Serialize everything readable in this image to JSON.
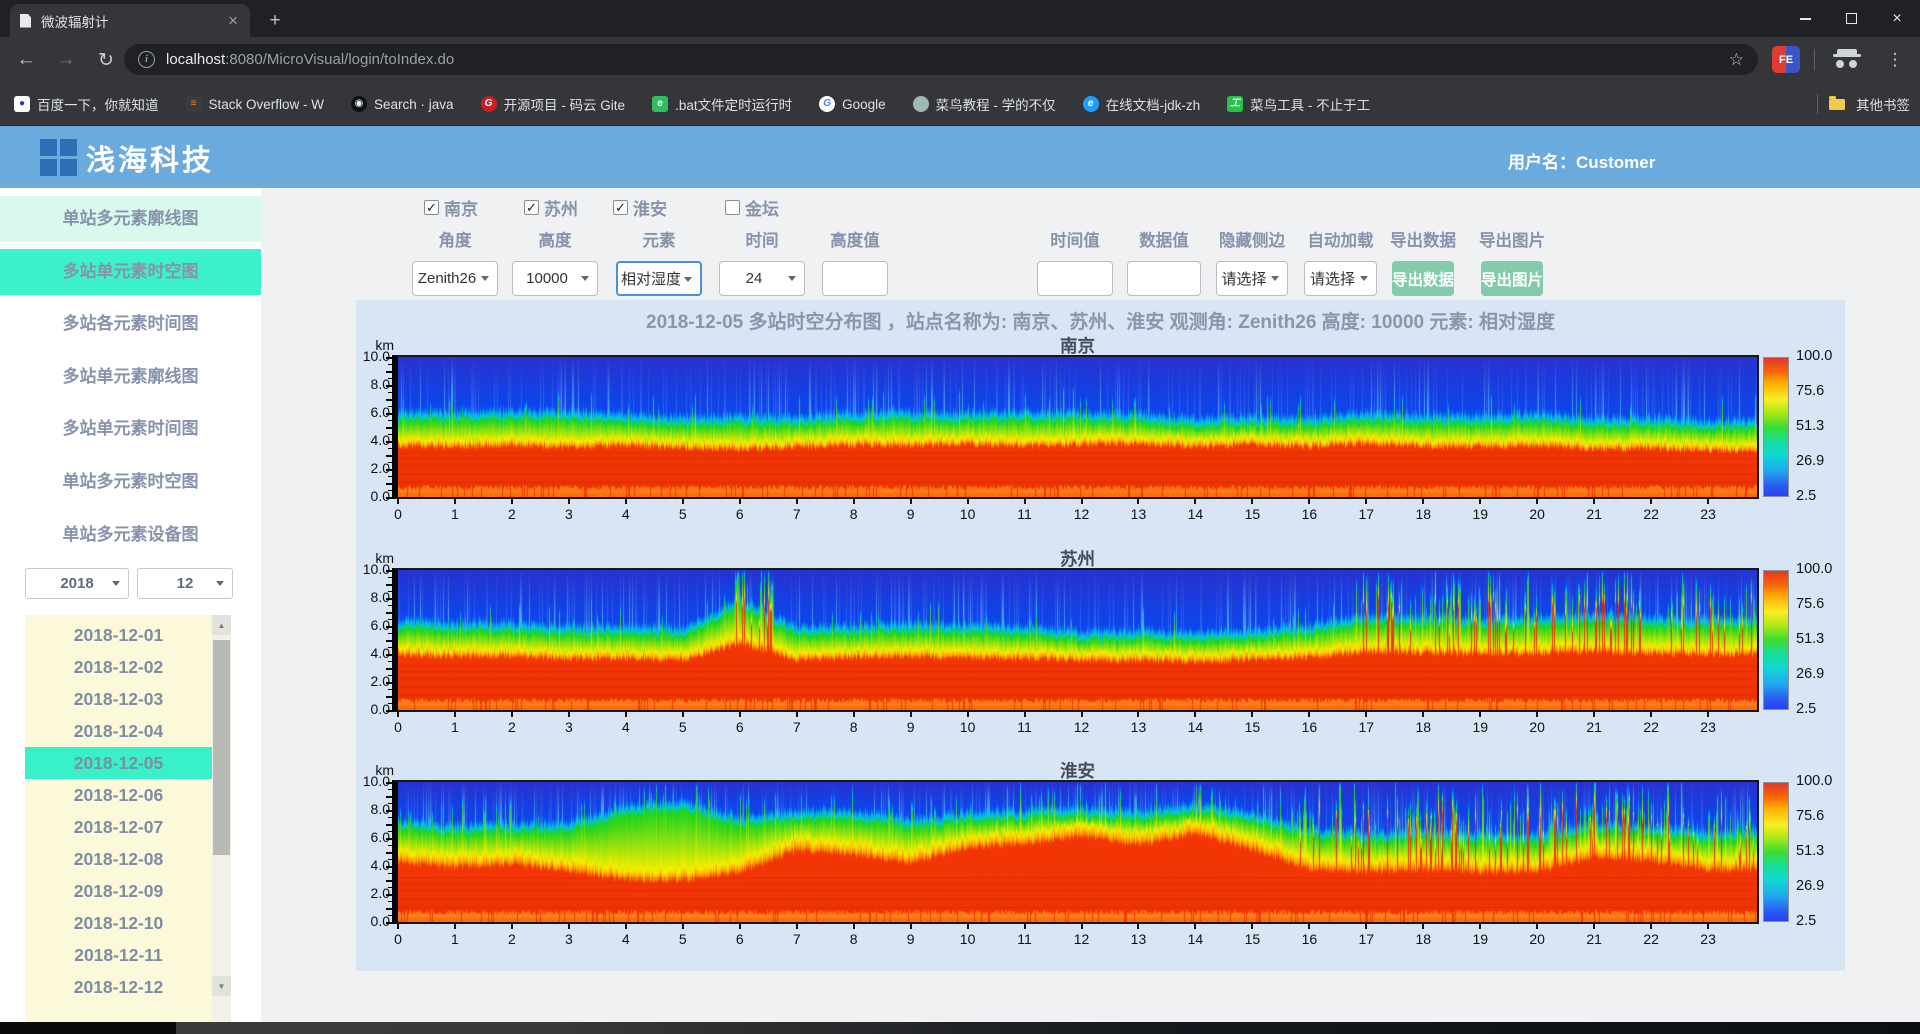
{
  "icons": {
    "close_x": "×",
    "close_small": "×",
    "plus": "+",
    "back": "←",
    "forward": "→",
    "reload": "↻",
    "info": "i",
    "star": "☆",
    "dots": "⋮",
    "up": "▲",
    "down": "▼",
    "check": "✓"
  },
  "browser": {
    "tab": {
      "title": "微波辐射计"
    },
    "address": {
      "host": "localhost",
      "path": ":8080/MicroVisual/login/toIndex.do"
    },
    "extension_badge": "FE",
    "other_bookmarks": "其他书签",
    "bookmarks": [
      {
        "label": "百度一下，你就知道",
        "bg": "#ffffff",
        "glyph": "●",
        "fg": "#2932e1",
        "shape": "square",
        "icon": "baidu-favicon"
      },
      {
        "label": "Stack Overflow - W",
        "bg": "#3a3b3f",
        "glyph": "≡",
        "fg": "#f48024",
        "shape": "square",
        "icon": "stackoverflow-favicon"
      },
      {
        "label": "Search · java",
        "bg": "#0d1117",
        "glyph": "◉",
        "fg": "#ffffff",
        "shape": "circle",
        "icon": "github-favicon"
      },
      {
        "label": "开源项目 - 码云 Gite",
        "bg": "#c71d23",
        "glyph": "G",
        "fg": "#ffffff",
        "shape": "circle",
        "icon": "gitee-favicon"
      },
      {
        "label": ".bat文件定时运行时",
        "bg": "#2dbe60",
        "glyph": "e",
        "fg": "#ffffff",
        "shape": "square",
        "icon": "evernote-favicon"
      },
      {
        "label": "Google",
        "bg": "#ffffff",
        "glyph": "G",
        "fg": "#4285f4",
        "shape": "circle",
        "icon": "google-favicon"
      },
      {
        "label": "菜鸟教程 - 学的不仅",
        "bg": "#9fb8b4",
        "glyph": "",
        "fg": "#ffffff",
        "shape": "circle",
        "icon": "runoob-favicon"
      },
      {
        "label": "在线文档-jdk-zh",
        "bg": "#1e9fff",
        "glyph": "e",
        "fg": "#ffffff",
        "shape": "circle",
        "icon": "jdk-docs-favicon"
      },
      {
        "label": "菜鸟工具 - 不止于工",
        "bg": "#27c24c",
        "glyph": "工",
        "fg": "#ffffff",
        "shape": "square",
        "icon": "runoob-tools-favicon"
      }
    ]
  },
  "header": {
    "brand": "浅海科技",
    "user": "用户名：Customer"
  },
  "sidebar": {
    "menu": [
      {
        "label": "单站多元素廓线图",
        "state": "pale"
      },
      {
        "label": "多站单元素时空图",
        "state": "active"
      },
      {
        "label": "多站各元素时间图",
        "state": ""
      },
      {
        "label": "多站单元素廓线图",
        "state": ""
      },
      {
        "label": "多站单元素时间图",
        "state": ""
      },
      {
        "label": "单站多元素时空图",
        "state": ""
      },
      {
        "label": "单站多元素设备图",
        "state": ""
      }
    ],
    "year": "2018",
    "month": "12",
    "dates": [
      "2018-12-01",
      "2018-12-02",
      "2018-12-03",
      "2018-12-04",
      "2018-12-05",
      "2018-12-06",
      "2018-12-07",
      "2018-12-08",
      "2018-12-09",
      "2018-12-10",
      "2018-12-11",
      "2018-12-12"
    ],
    "selected_date": "2018-12-05"
  },
  "controls": {
    "stations": [
      {
        "key": "nanjing",
        "label": "南京",
        "checked": true
      },
      {
        "key": "suzhou",
        "label": "苏州",
        "checked": true
      },
      {
        "key": "huaian",
        "label": "淮安",
        "checked": true
      },
      {
        "key": "jintan",
        "label": "金坛",
        "checked": false
      }
    ],
    "fields": [
      {
        "key": "angle",
        "label": "角度",
        "type": "select",
        "value": "Zenith26"
      },
      {
        "key": "height",
        "label": "高度",
        "type": "select",
        "value": "10000"
      },
      {
        "key": "element",
        "label": "元素",
        "type": "select",
        "value": "相对湿度",
        "focused": true
      },
      {
        "key": "time",
        "label": "时间",
        "type": "select",
        "value": "24"
      },
      {
        "key": "height-value",
        "label": "高度值",
        "type": "input",
        "value": ""
      },
      {
        "key": "time-value",
        "label": "时间值",
        "type": "input",
        "value": ""
      },
      {
        "key": "data-value",
        "label": "数据值",
        "type": "input",
        "value": ""
      },
      {
        "key": "hide-side",
        "label": "隐藏侧边",
        "type": "select",
        "value": "请选择"
      },
      {
        "key": "auto-load",
        "label": "自动加载",
        "type": "select",
        "value": "请选择"
      },
      {
        "key": "export-data",
        "label": "导出数据",
        "type": "button",
        "value": "导出数据"
      },
      {
        "key": "export-image",
        "label": "导出图片",
        "type": "button",
        "value": "导出图片"
      }
    ]
  },
  "chart_data": {
    "type": "heatmap",
    "title": "2018-12-05 多站时空分布图 ，站点名称为: 南京、苏州、淮安 观测角: Zenith26 高度: 10000 元素: 相对湿度",
    "ylabel": "km",
    "xlabel": "",
    "x_ticks": [
      0,
      1,
      2,
      3,
      4,
      5,
      6,
      7,
      8,
      9,
      10,
      11,
      12,
      13,
      14,
      15,
      16,
      17,
      18,
      19,
      20,
      21,
      22,
      23
    ],
    "y_ticks": [
      "10.0",
      "8.0",
      "6.0",
      "4.0",
      "2.0",
      "0.0"
    ],
    "x_range_hours": [
      0,
      23.86
    ],
    "y_range_km": [
      0,
      10
    ],
    "colorbar_ticks": [
      "100.0",
      "75.6",
      "51.3",
      "26.9",
      "2.5"
    ],
    "colorbar_range": [
      2.5,
      100.0
    ],
    "legend_position": "right",
    "grid": false,
    "stations": [
      {
        "name": "南京",
        "seed": 101,
        "spike_prob": 0.05,
        "yellow_width": 0.5,
        "red_top_km_by_hour": [
          3.4,
          3.3,
          3.4,
          3.3,
          3.5,
          3.4,
          3.3,
          3.4,
          3.5,
          3.4,
          3.5,
          3.4,
          3.6,
          3.8,
          3.7,
          3.9,
          3.7,
          3.9,
          3.6,
          3.5,
          3.6,
          3.4,
          3.5,
          3.4
        ],
        "green_top_km_by_hour": [
          5.1,
          5.0,
          5.1,
          5.2,
          5.1,
          5.0,
          5.1,
          5.0,
          5.2,
          5.1,
          5.0,
          5.2,
          5.3,
          5.4,
          5.3,
          5.5,
          5.3,
          5.6,
          5.3,
          5.2,
          5.3,
          5.1,
          5.2,
          5.1
        ],
        "stripe_regions": []
      },
      {
        "name": "苏州",
        "seed": 202,
        "spike_prob": 0.05,
        "yellow_width": 0.55,
        "red_top_km_by_hour": [
          3.6,
          3.5,
          3.6,
          3.5,
          3.6,
          3.5,
          4.6,
          3.4,
          3.5,
          3.6,
          3.5,
          3.6,
          3.6,
          3.7,
          3.6,
          3.7,
          3.8,
          4.1,
          4.0,
          3.9,
          4.0,
          4.2,
          4.1,
          4.0
        ],
        "green_top_km_by_hour": [
          5.3,
          5.2,
          5.3,
          5.2,
          5.3,
          5.2,
          7.2,
          5.1,
          5.1,
          5.2,
          5.3,
          5.3,
          5.2,
          5.4,
          5.3,
          5.4,
          5.6,
          6.2,
          6.0,
          5.9,
          6.1,
          6.4,
          6.2,
          6.1
        ],
        "stripe_regions": [
          [
            5.9,
            6.6,
            0.5
          ],
          [
            16.8,
            23.9,
            0.22
          ]
        ]
      },
      {
        "name": "淮安",
        "seed": 303,
        "spike_prob": 0.13,
        "yellow_width": 0.8,
        "red_top_km_by_hour": [
          3.9,
          3.7,
          4.0,
          3.6,
          2.9,
          2.8,
          3.4,
          4.9,
          4.6,
          4.1,
          5.3,
          5.7,
          6.3,
          5.7,
          6.4,
          5.2,
          3.7,
          3.5,
          3.6,
          3.5,
          3.6,
          4.7,
          4.4,
          3.6
        ],
        "green_top_km_by_hour": [
          6.2,
          6.0,
          6.3,
          6.4,
          7.6,
          7.9,
          6.6,
          7.0,
          7.1,
          6.6,
          7.3,
          7.6,
          7.9,
          7.7,
          8.1,
          7.3,
          6.0,
          5.7,
          5.9,
          5.7,
          5.8,
          6.6,
          6.3,
          5.8
        ],
        "stripe_regions": [
          [
            15.7,
            23.9,
            0.25
          ]
        ]
      }
    ]
  },
  "colors": {
    "accent_teal": "#3bf2ca",
    "pale_teal": "#d9f9ec",
    "button_green": "#83cbac",
    "header_blue": "#6aaadd",
    "panel_blue": "#d7e5f4",
    "list_yellow": "#fcf9da"
  }
}
